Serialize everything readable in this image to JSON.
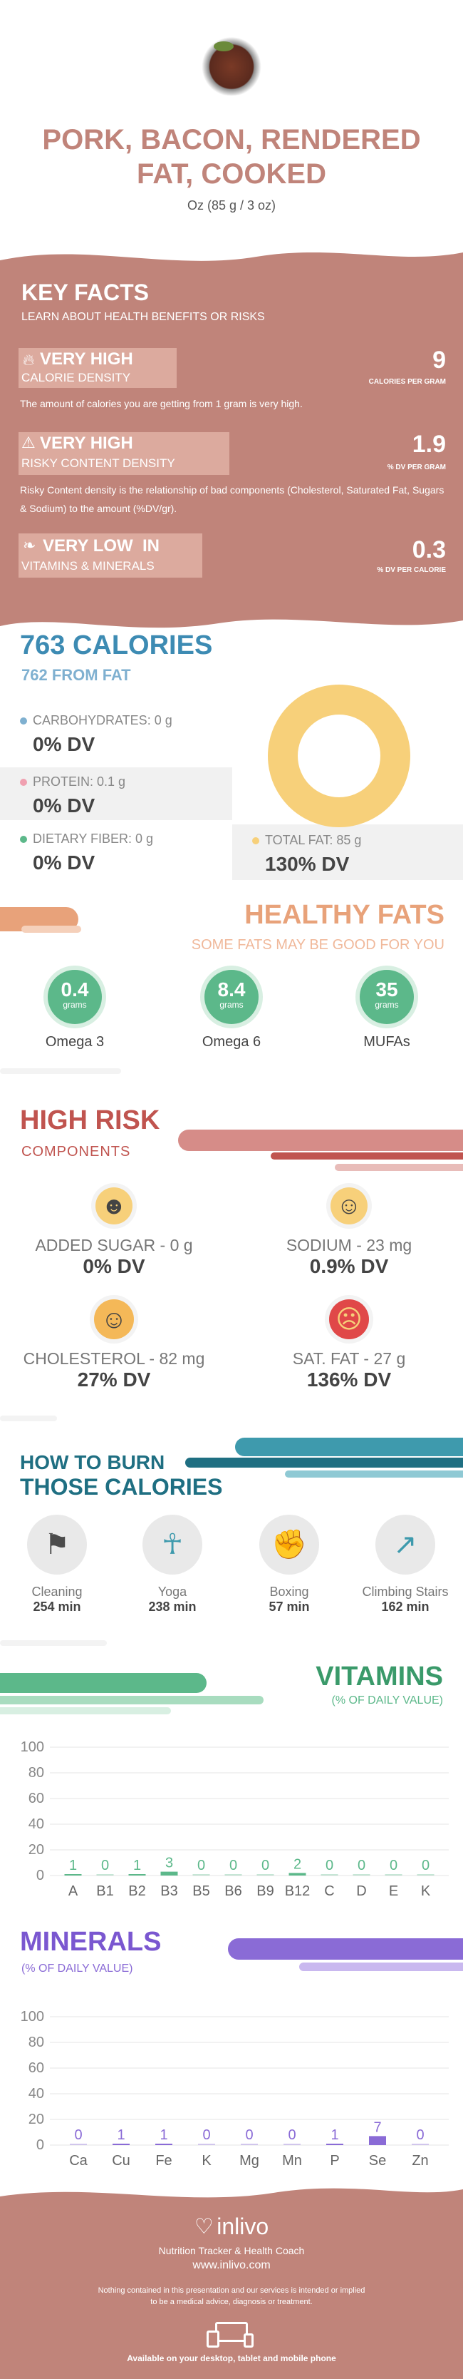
{
  "header": {
    "title_line1": "PORK, BACON, RENDERED",
    "title_line2": "FAT, COOKED",
    "serving": "Oz (85 g / 3 oz)"
  },
  "key_facts": {
    "title": "KEY FACTS",
    "subtitle": "LEARN ABOUT HEALTH BENEFITS OR RISKS",
    "items": [
      {
        "level": "VERY HIGH",
        "name": "CALORIE DENSITY",
        "value": "9",
        "unit": "CALORIES PER GRAM",
        "desc": "The amount of calories you are getting from 1 gram is very high.",
        "icon": "flame-icon"
      },
      {
        "level": "VERY HIGH",
        "name": "RISKY CONTENT DENSITY",
        "value": "1.9",
        "unit": "% DV PER GRAM",
        "desc": "Risky Content density is the relationship of bad components (Cholesterol, Saturated Fat, Sugars & Sodium) to the amount (%DV/gr).",
        "icon": "warning-icon"
      },
      {
        "level": "VERY LOW  IN",
        "name": "VITAMINS & MINERALS",
        "value": "0.3",
        "unit": "% DV PER CALORIE",
        "icon": "leaf-icon"
      }
    ]
  },
  "calories": {
    "title": "763 CALORIES",
    "from_fat": "762 FROM FAT",
    "carbs_label": "CARBOHYDRATES: 0 g",
    "carbs_dv": "0% DV",
    "protein_label": "PROTEIN: 0.1 g",
    "protein_dv": "0% DV",
    "fiber_label": "DIETARY FIBER: 0 g",
    "fiber_dv": "0% DV",
    "fat_label": "TOTAL FAT: 85 g",
    "fat_dv": "130% DV"
  },
  "healthy_fats": {
    "title": "HEALTHY FATS",
    "subtitle": "SOME FATS MAY BE GOOD FOR YOU",
    "items": [
      {
        "value": "0.4",
        "unit": "grams",
        "name": "Omega 3"
      },
      {
        "value": "8.4",
        "unit": "grams",
        "name": "Omega 6"
      },
      {
        "value": "35",
        "unit": "grams",
        "name": "MUFAs"
      }
    ]
  },
  "high_risk": {
    "title": "HIGH RISK",
    "subtitle": "COMPONENTS",
    "items": [
      {
        "label": "ADDED SUGAR - 0 g",
        "dv": "0% DV",
        "icon": "grin-face-icon"
      },
      {
        "label": "SODIUM - 23 mg",
        "dv": "0.9% DV",
        "icon": "smile-face-icon"
      },
      {
        "label": "CHOLESTEROL - 82 mg",
        "dv": "27% DV",
        "icon": "neutral-face-icon"
      },
      {
        "label": "SAT. FAT - 27 g",
        "dv": "136% DV",
        "icon": "sick-face-icon"
      }
    ]
  },
  "burn": {
    "title_line1": "HOW TO BURN",
    "title_line2": "THOSE CALORIES",
    "items": [
      {
        "name": "Cleaning",
        "value": "254 min",
        "icon": "cleaning-icon"
      },
      {
        "name": "Yoga",
        "value": "238 min",
        "icon": "yoga-icon"
      },
      {
        "name": "Boxing",
        "value": "57 min",
        "icon": "boxing-icon"
      },
      {
        "name": "Climbing Stairs",
        "value": "162 min",
        "icon": "stairs-icon"
      }
    ]
  },
  "vitamins": {
    "title": "VITAMINS",
    "subtitle": "(% OF DAILY VALUE)"
  },
  "minerals": {
    "title": "MINERALS",
    "subtitle": "(% OF DAILY VALUE)"
  },
  "chart_data": [
    {
      "type": "bar",
      "categories": [
        "A",
        "B1",
        "B2",
        "B3",
        "B5",
        "B6",
        "B9",
        "B12",
        "C",
        "D",
        "E",
        "K"
      ],
      "values": [
        1,
        0,
        1,
        3,
        0,
        0,
        0,
        2,
        0,
        0,
        0,
        0
      ],
      "ylim": [
        0,
        100
      ],
      "yticks": [
        0,
        20,
        40,
        60,
        80,
        100
      ],
      "color": "#5cb88a"
    },
    {
      "type": "bar",
      "categories": [
        "Ca",
        "Cu",
        "Fe",
        "K",
        "Mg",
        "Mn",
        "P",
        "Se",
        "Zn"
      ],
      "values": [
        0,
        1,
        1,
        0,
        0,
        0,
        1,
        7,
        0
      ],
      "ylim": [
        0,
        100
      ],
      "yticks": [
        0,
        20,
        40,
        60,
        80,
        100
      ],
      "color": "#8a6bd6"
    }
  ],
  "footer": {
    "brand": "inlivo",
    "tagline": "Nutrition Tracker & Health Coach",
    "url": "www.inlivo.com",
    "disclaimer1": "Nothing contained in this presentation and our services is intended or implied",
    "disclaimer2": "to be a medical advice, diagnosis or treatment.",
    "devices": "Available on your desktop, tablet and mobile phone"
  },
  "colors": {
    "rose": "#c0847a",
    "blue": "#3d8bb3",
    "orange": "#e8a27a",
    "red": "#c0544f",
    "teal": "#3e9aad",
    "green": "#5cb88a",
    "purple": "#8a6bd6",
    "yellow": "#f7d07a"
  }
}
